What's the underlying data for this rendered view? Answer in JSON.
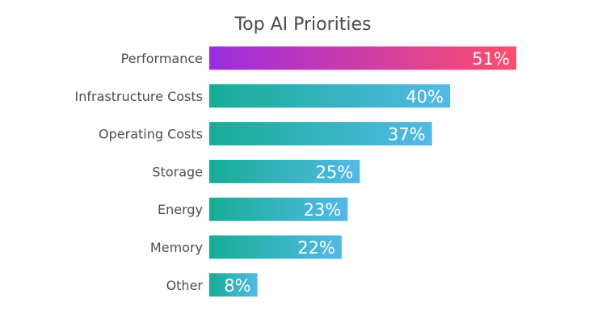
{
  "colors": {
    "highlight_start": "#9b2de0",
    "highlight_end": "#ff4d6d",
    "bar_start": "#17ad96",
    "bar_end": "#53b9e6",
    "label_color": "#4d4d4d",
    "title_color": "#4a4a4a",
    "value_label_color": "#ffffff"
  },
  "chart_data": {
    "type": "bar",
    "orientation": "horizontal",
    "title": "Top AI Priorities",
    "xlabel": "",
    "ylabel": "",
    "categories": [
      "Performance",
      "Infrastructure Costs",
      "Operating Costs",
      "Storage",
      "Energy",
      "Memory",
      "Other"
    ],
    "values": [
      51,
      40,
      37,
      25,
      23,
      22,
      8
    ],
    "value_labels": [
      "51%",
      "40%",
      "37%",
      "25%",
      "23%",
      "22%",
      "8%"
    ],
    "unit": "%",
    "xlim": [
      0,
      100
    ],
    "grid": false,
    "legend": "none",
    "highlighted_category": "Performance"
  }
}
